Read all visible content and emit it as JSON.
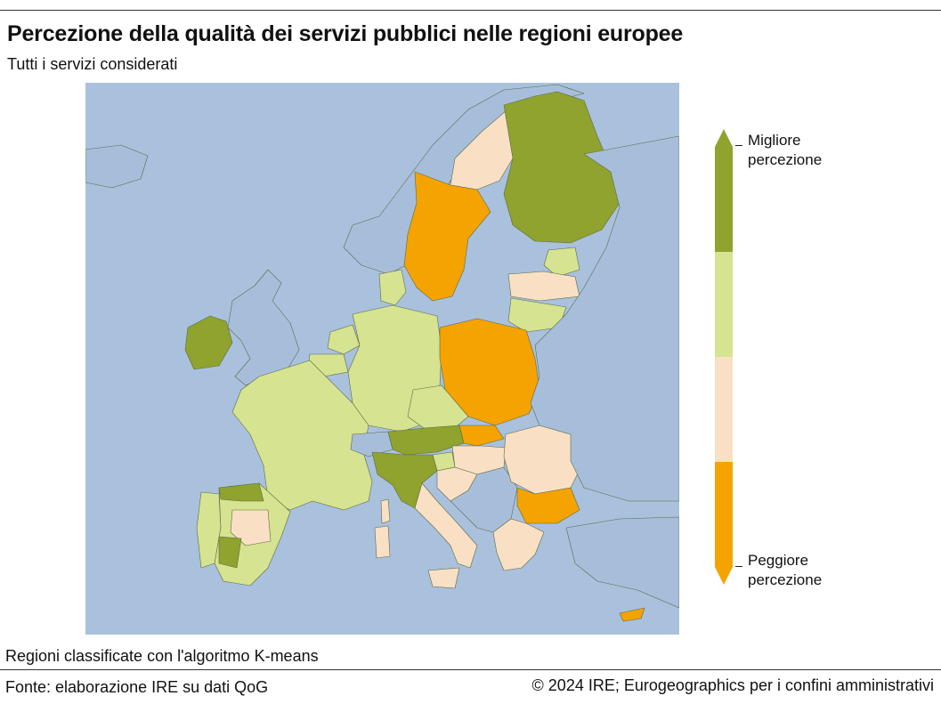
{
  "title": "Percezione della qualità dei servizi pubblici nelle regioni europee",
  "subtitle": "Tutti i servizi considerati",
  "legend": {
    "top_label": "Migliore percezione",
    "bottom_label": "Peggiore percezione",
    "classes": [
      {
        "key": "c1",
        "color": "#8fa32e"
      },
      {
        "key": "c2",
        "color": "#d6e390"
      },
      {
        "key": "c3",
        "color": "#f9e0c4"
      },
      {
        "key": "c4",
        "color": "#f5a300"
      }
    ]
  },
  "note": "Regioni classificate con l'algoritmo K-means",
  "source_left": "Fonte: elaborazione IRE su dati QoG",
  "source_right": "© 2024 IRE; Eurogeographics per i confini amministrativi",
  "colors": {
    "sea": "#a9c1dd",
    "non_eu_land": "#a7bedb",
    "border": "#5c6b45"
  },
  "regions": [
    {
      "id": "iceland",
      "cls": "none"
    },
    {
      "id": "norway",
      "cls": "none"
    },
    {
      "id": "uk",
      "cls": "none"
    },
    {
      "id": "ireland",
      "cls": "c1"
    },
    {
      "id": "sweden-north",
      "cls": "c3"
    },
    {
      "id": "sweden-south",
      "cls": "c4"
    },
    {
      "id": "finland",
      "cls": "c1"
    },
    {
      "id": "estonia",
      "cls": "c2"
    },
    {
      "id": "latvia",
      "cls": "c3"
    },
    {
      "id": "lithuania",
      "cls": "c2"
    },
    {
      "id": "denmark",
      "cls": "c2"
    },
    {
      "id": "netherlands",
      "cls": "c2"
    },
    {
      "id": "belgium",
      "cls": "c2"
    },
    {
      "id": "germany",
      "cls": "c2"
    },
    {
      "id": "poland",
      "cls": "c4"
    },
    {
      "id": "czechia",
      "cls": "c2"
    },
    {
      "id": "france",
      "cls": "c2"
    },
    {
      "id": "switzerland",
      "cls": "none"
    },
    {
      "id": "austria",
      "cls": "c1"
    },
    {
      "id": "slovenia",
      "cls": "c2"
    },
    {
      "id": "italy-north",
      "cls": "c1"
    },
    {
      "id": "italy-south",
      "cls": "c3"
    },
    {
      "id": "corsica",
      "cls": "c3"
    },
    {
      "id": "sardinia",
      "cls": "c3"
    },
    {
      "id": "sicily",
      "cls": "c3"
    },
    {
      "id": "portugal",
      "cls": "c2"
    },
    {
      "id": "spain",
      "cls": "c2"
    },
    {
      "id": "spain-north",
      "cls": "c1"
    },
    {
      "id": "spain-centre",
      "cls": "c3"
    },
    {
      "id": "spain-west",
      "cls": "c1"
    },
    {
      "id": "slovakia",
      "cls": "c4"
    },
    {
      "id": "hungary",
      "cls": "c3"
    },
    {
      "id": "croatia",
      "cls": "c3"
    },
    {
      "id": "balkans",
      "cls": "none"
    },
    {
      "id": "romania",
      "cls": "c3"
    },
    {
      "id": "bulgaria",
      "cls": "c4"
    },
    {
      "id": "greece",
      "cls": "c3"
    },
    {
      "id": "russia-ukraine",
      "cls": "none"
    },
    {
      "id": "turkey",
      "cls": "none"
    },
    {
      "id": "cyprus",
      "cls": "c4"
    }
  ]
}
